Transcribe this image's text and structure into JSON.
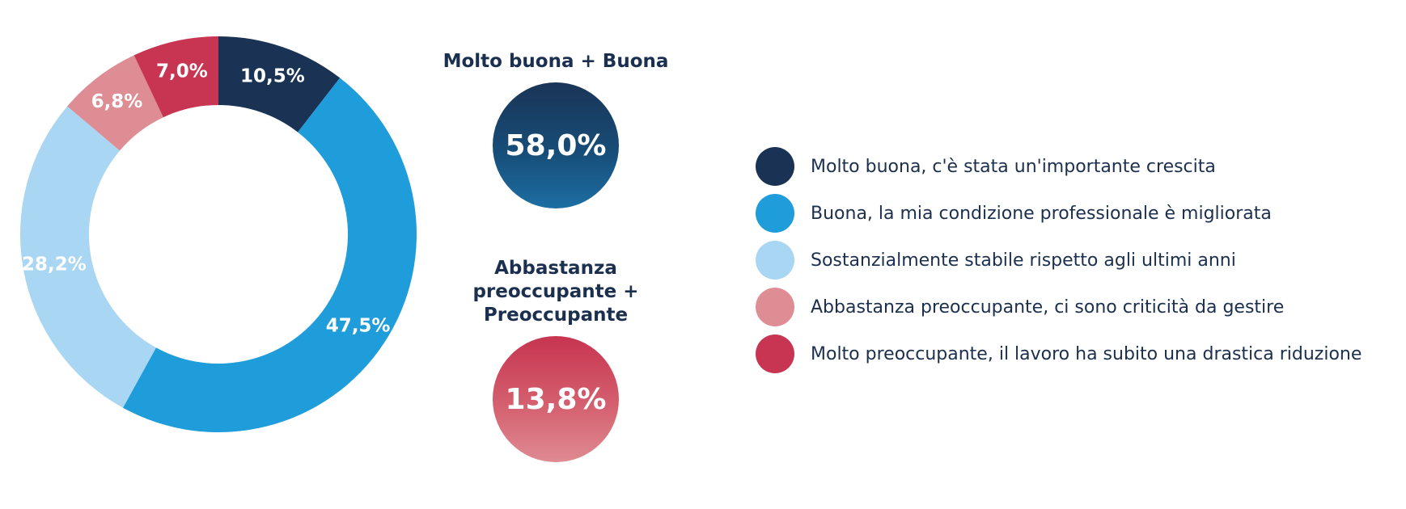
{
  "chart_data": {
    "type": "pie",
    "style": "donut",
    "slices": [
      {
        "label": "Molto buona, c'è stata un'importante crescita",
        "value": 10.5,
        "value_label": "10,5%",
        "color": "#1a3254"
      },
      {
        "label": "Buona, la mia condizione professionale è migliorata",
        "value": 47.5,
        "value_label": "47,5%",
        "color": "#1f9ddb"
      },
      {
        "label": "Sostanzialmente stabile rispetto agli ultimi anni",
        "value": 28.2,
        "value_label": "28,2%",
        "color": "#a9d6f2"
      },
      {
        "label": "Abbastanza preoccupante, ci sono criticità da gestire",
        "value": 6.8,
        "value_label": "6,8%",
        "color": "#de8d94"
      },
      {
        "label": "Molto preoccupante, il lavoro ha subito una drastica riduzione",
        "value": 7.0,
        "value_label": "7,0%",
        "color": "#c83552"
      }
    ],
    "legend_position": "right",
    "summaries": [
      {
        "title_lines": [
          "Molto buona + Buona"
        ],
        "value": 58.0,
        "value_label": "58,0%"
      },
      {
        "title_lines": [
          "Abbastanza",
          "preoccupante +",
          "Preoccupante"
        ],
        "value": 13.8,
        "value_label": "13,8%"
      }
    ]
  }
}
